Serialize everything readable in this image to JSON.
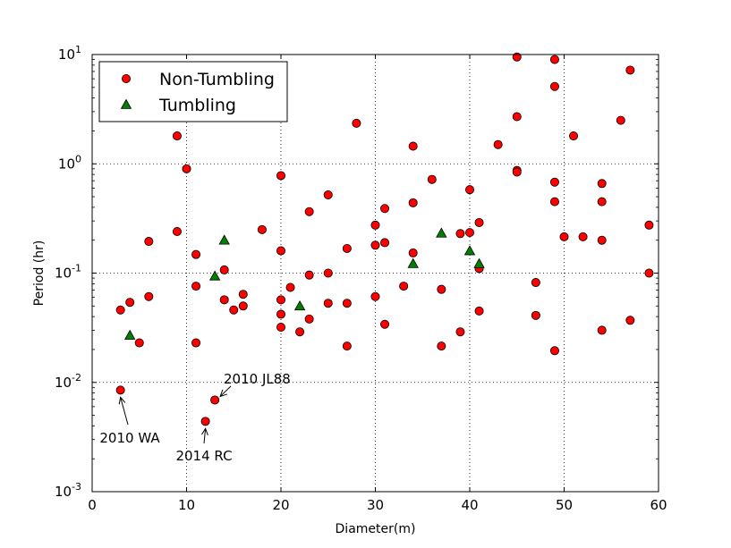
{
  "chart_data": {
    "type": "scatter",
    "title": "",
    "xlabel": "Diameter(m)",
    "ylabel": "Period (hr)",
    "xlim": [
      0,
      60
    ],
    "ylim": [
      0.001,
      10
    ],
    "yscale": "log",
    "grid": true,
    "legend_position": "top-left",
    "x_ticks": [
      "0",
      "10",
      "20",
      "30",
      "40",
      "50",
      "60"
    ],
    "y_ticks": [
      {
        "base": "10",
        "exp": "-3"
      },
      {
        "base": "10",
        "exp": "-2"
      },
      {
        "base": "10",
        "exp": "-1"
      },
      {
        "base": "10",
        "exp": "0"
      },
      {
        "base": "10",
        "exp": "1"
      }
    ],
    "series": [
      {
        "name": "Non-Tumbling",
        "marker": "circle",
        "color": "#ff0000",
        "points": [
          [
            3,
            0.0085
          ],
          [
            3,
            0.046
          ],
          [
            4,
            0.054
          ],
          [
            5,
            0.023
          ],
          [
            6,
            0.061
          ],
          [
            6,
            0.195
          ],
          [
            9,
            1.8
          ],
          [
            9,
            0.24
          ],
          [
            10,
            0.9
          ],
          [
            11,
            0.148
          ],
          [
            11,
            0.076
          ],
          [
            11,
            0.023
          ],
          [
            12,
            0.0044
          ],
          [
            13,
            0.0069
          ],
          [
            14,
            0.107
          ],
          [
            14,
            0.057
          ],
          [
            15,
            0.046
          ],
          [
            16,
            0.064
          ],
          [
            16,
            0.05
          ],
          [
            18,
            0.25
          ],
          [
            20,
            0.78
          ],
          [
            20,
            0.16
          ],
          [
            20,
            0.057
          ],
          [
            20,
            0.042
          ],
          [
            20,
            0.032
          ],
          [
            21,
            0.074
          ],
          [
            22,
            0.029
          ],
          [
            23,
            0.365
          ],
          [
            23,
            0.096
          ],
          [
            23,
            0.038
          ],
          [
            25,
            0.52
          ],
          [
            25,
            0.1
          ],
          [
            25,
            0.053
          ],
          [
            27,
            0.168
          ],
          [
            27,
            0.053
          ],
          [
            27,
            0.0215
          ],
          [
            28,
            2.35
          ],
          [
            30,
            0.275
          ],
          [
            30,
            0.18
          ],
          [
            30,
            0.061
          ],
          [
            31,
            0.39
          ],
          [
            31,
            0.19
          ],
          [
            31,
            0.034
          ],
          [
            33,
            0.076
          ],
          [
            34,
            1.45
          ],
          [
            34,
            0.44
          ],
          [
            34,
            0.153
          ],
          [
            36,
            0.72
          ],
          [
            37,
            0.071
          ],
          [
            37,
            0.0215
          ],
          [
            39,
            0.23
          ],
          [
            39,
            0.029
          ],
          [
            40,
            0.58
          ],
          [
            40,
            0.235
          ],
          [
            41,
            0.29
          ],
          [
            41,
            0.11
          ],
          [
            41,
            0.045
          ],
          [
            43,
            1.5
          ],
          [
            45,
            9.5
          ],
          [
            45,
            2.7
          ],
          [
            45,
            0.87
          ],
          [
            45,
            0.84
          ],
          [
            47,
            0.082
          ],
          [
            47,
            0.041
          ],
          [
            49,
            9.0
          ],
          [
            49,
            5.1
          ],
          [
            49,
            0.68
          ],
          [
            49,
            0.45
          ],
          [
            49,
            0.0195
          ],
          [
            50,
            0.215
          ],
          [
            51,
            1.8
          ],
          [
            52,
            0.215
          ],
          [
            54,
            0.66
          ],
          [
            54,
            0.45
          ],
          [
            54,
            0.2
          ],
          [
            54,
            0.03
          ],
          [
            56,
            2.5
          ],
          [
            57,
            7.2
          ],
          [
            57,
            0.037
          ],
          [
            59,
            0.275
          ],
          [
            59,
            0.1
          ]
        ]
      },
      {
        "name": "Tumbling",
        "marker": "triangle",
        "color": "#008000",
        "points": [
          [
            4,
            0.027
          ],
          [
            13,
            0.094
          ],
          [
            14,
            0.2
          ],
          [
            22,
            0.05
          ],
          [
            34,
            0.122
          ],
          [
            37,
            0.232
          ],
          [
            40,
            0.16
          ],
          [
            41,
            0.122
          ]
        ]
      }
    ],
    "annotations": [
      {
        "text": "2010 JL88",
        "x": 13,
        "y": 0.0069
      },
      {
        "text": "2010 WA",
        "x": 3,
        "y": 0.0085
      },
      {
        "text": "2014 RC",
        "x": 12,
        "y": 0.0044
      }
    ]
  }
}
